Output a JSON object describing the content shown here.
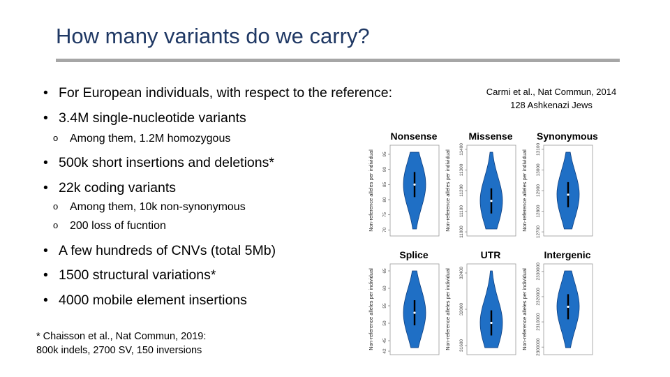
{
  "slide": {
    "title": "How many variants do we carry?",
    "bullets": [
      {
        "text": "For European individuals, with respect to the reference:"
      },
      {
        "text": "3.4M single-nucleotide variants"
      },
      {
        "text": "500k short insertions and deletions*"
      },
      {
        "text": "22k coding variants"
      },
      {
        "text": "A few hundreds of CNVs (total 5Mb)"
      },
      {
        "text": "1500 structural variations*"
      },
      {
        "text": "4000 mobile element insertions"
      }
    ],
    "subbullets": [
      {
        "text": "Among them, 1.2M homozygous"
      },
      {
        "text": "Among them, 10k non-synonymous"
      },
      {
        "text": "200 loss of fucntion"
      }
    ],
    "bullet_symbol": "•",
    "sub_symbol": "o",
    "footnote": {
      "line1": "* Chaisson et al., Nat Commun, 2019:",
      "line2": "800k indels, 2700 SV, 150 inversions"
    },
    "citation": {
      "line1": "Carmi et al., Nat Commun, 2014",
      "line2": "128 Ashkenazi Jews"
    }
  },
  "chart_data": {
    "type": "violin",
    "ylabel": "Non-reference alleles per individual",
    "violin_color": "#1f6fc5",
    "panels": [
      {
        "name": "Nonsense",
        "ticks": [
          "70",
          "75",
          "80",
          "85",
          "90",
          "95"
        ],
        "ylim": [
          68,
          98
        ],
        "median": 85
      },
      {
        "name": "Missense",
        "ticks": [
          "11000",
          "11100",
          "11200",
          "11300",
          "11400"
        ],
        "ylim": [
          10980,
          11420
        ],
        "median": 11150
      },
      {
        "name": "Synonymous",
        "ticks": [
          "12700",
          "12800",
          "12900",
          "13000",
          "13100"
        ],
        "ylim": [
          12680,
          13120
        ],
        "median": 12880
      },
      {
        "name": "Splice",
        "ticks": [
          "42",
          "45",
          "50",
          "55",
          "60",
          "65"
        ],
        "ylim": [
          41,
          67
        ],
        "median": 53
      },
      {
        "name": "UTR",
        "ticks": [
          "31600",
          "32000",
          "32400"
        ],
        "ylim": [
          31500,
          32500
        ],
        "median": 31850
      },
      {
        "name": "Intergenic",
        "ticks": [
          "2300000",
          "2310000",
          "2320000",
          "2330000"
        ],
        "ylim": [
          2297000,
          2333000
        ],
        "median": 2316000
      }
    ]
  }
}
